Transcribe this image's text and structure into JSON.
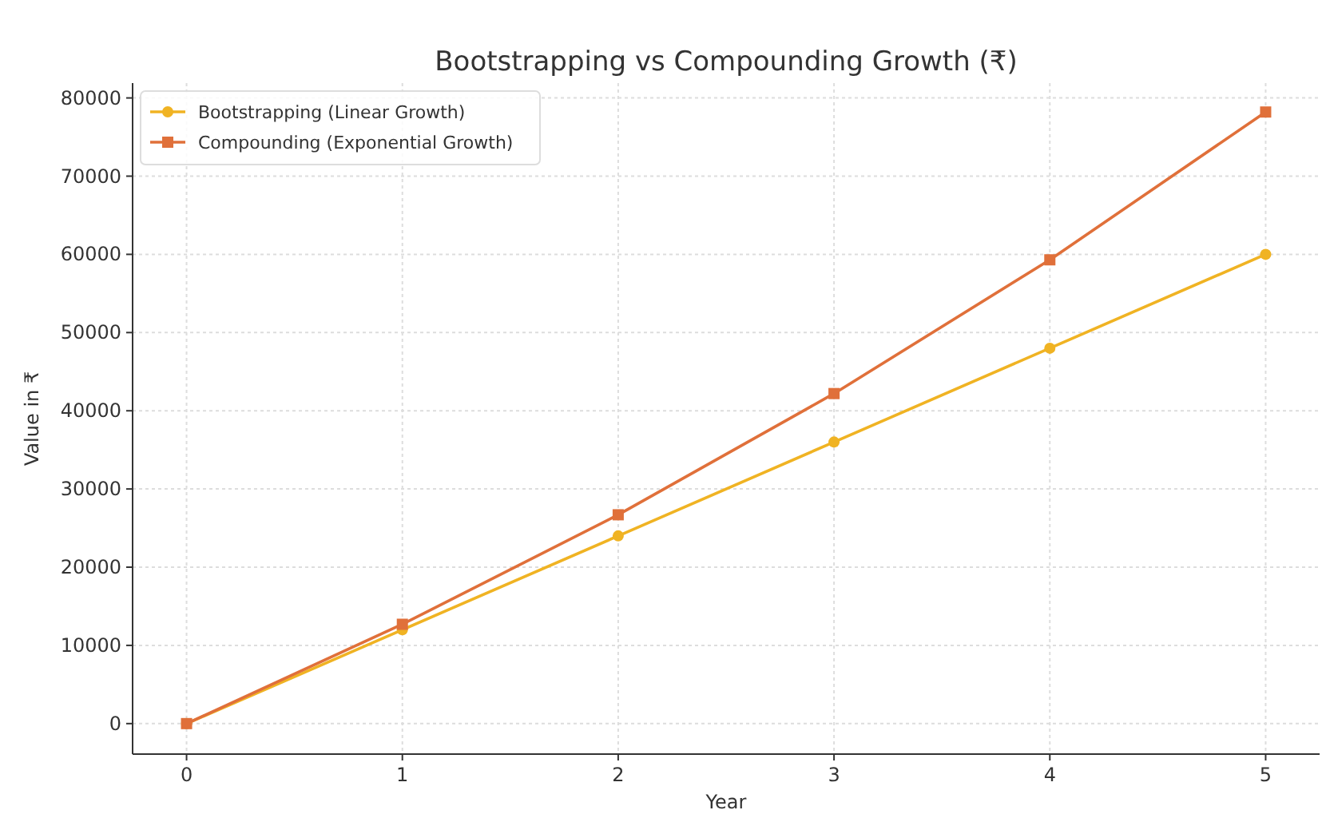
{
  "chart_data": {
    "type": "line",
    "title": "Bootstrapping vs Compounding Growth (₹)",
    "xlabel": "Year",
    "ylabel": "Value in ₹",
    "x": [
      0,
      1,
      2,
      3,
      4,
      5
    ],
    "series": [
      {
        "name": "Bootstrapping (Linear Growth)",
        "color": "#f0b323",
        "marker": "circle",
        "values": [
          0,
          12000,
          24000,
          36000,
          48000,
          60000
        ]
      },
      {
        "name": "Compounding (Exponential Growth)",
        "color": "#e0703a",
        "marker": "square",
        "values": [
          0,
          12700,
          26700,
          42200,
          59300,
          78200
        ]
      }
    ],
    "xlim": [
      -0.25,
      5.25
    ],
    "xticks": [
      0,
      1,
      2,
      3,
      4,
      5
    ],
    "ylim": [
      -3900,
      81900
    ],
    "yticks": [
      0,
      10000,
      20000,
      30000,
      40000,
      50000,
      60000,
      70000,
      80000
    ],
    "grid": true,
    "legend": "top left",
    "line_style": "solid"
  }
}
